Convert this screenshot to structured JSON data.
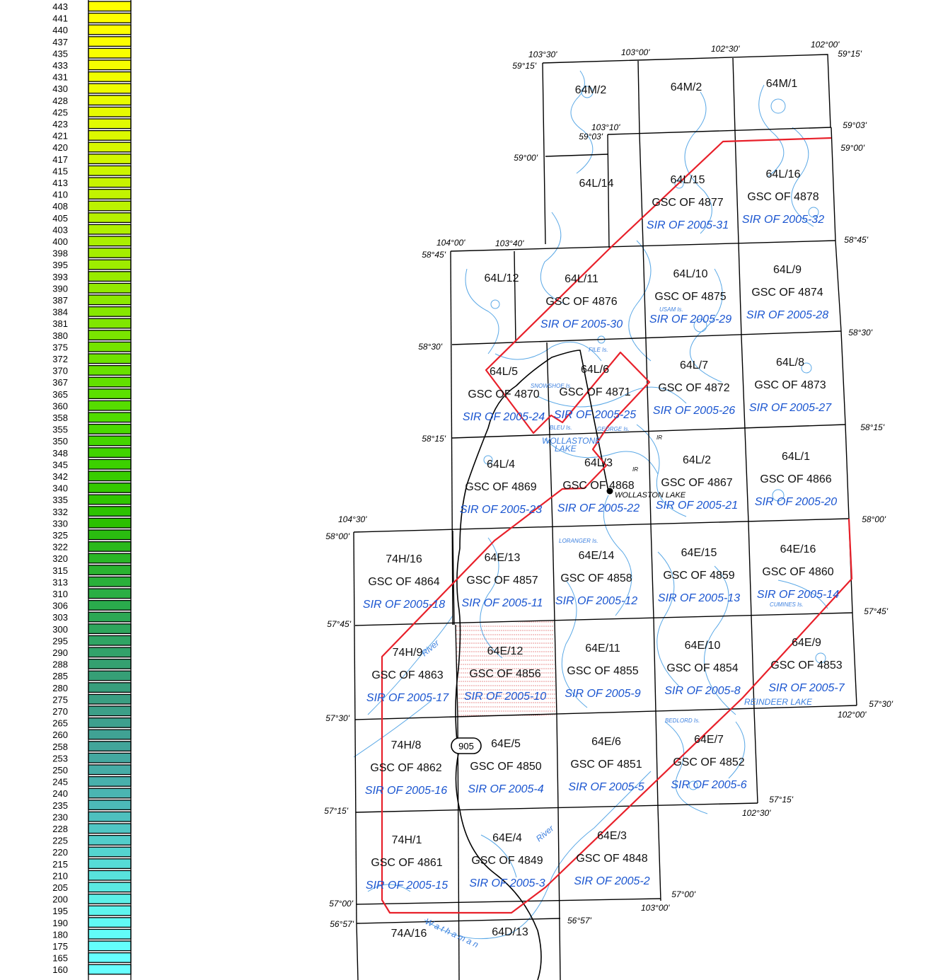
{
  "legend": {
    "values": [
      "443",
      "441",
      "440",
      "437",
      "435",
      "433",
      "431",
      "430",
      "428",
      "425",
      "423",
      "421",
      "420",
      "417",
      "415",
      "413",
      "410",
      "408",
      "405",
      "403",
      "400",
      "398",
      "395",
      "393",
      "390",
      "387",
      "384",
      "381",
      "380",
      "375",
      "372",
      "370",
      "367",
      "365",
      "360",
      "358",
      "355",
      "350",
      "348",
      "345",
      "342",
      "340",
      "335",
      "332",
      "330",
      "325",
      "322",
      "320",
      "315",
      "313",
      "310",
      "306",
      "303",
      "300",
      "295",
      "290",
      "288",
      "285",
      "280",
      "275",
      "270",
      "265",
      "260",
      "258",
      "253",
      "250",
      "245",
      "240",
      "235",
      "230",
      "228",
      "225",
      "220",
      "215",
      "210",
      "205",
      "200",
      "195",
      "190",
      "180",
      "175",
      "165",
      "160"
    ],
    "colors": [
      "#ffff00",
      "#ffff00",
      "#ffff00",
      "#fcfe00",
      "#f8fe00",
      "#f5fd00",
      "#f1fd00",
      "#eefc00",
      "#eafc00",
      "#e6fb00",
      "#e1fa00",
      "#dcf900",
      "#d7f800",
      "#d2f700",
      "#cdf500",
      "#c8f400",
      "#c2f300",
      "#bcf200",
      "#b6f100",
      "#b0f000",
      "#aaef00",
      "#a4ee00",
      "#9eec00",
      "#98eb00",
      "#92ea00",
      "#8ce900",
      "#86e800",
      "#80e600",
      "#7ae500",
      "#74e400",
      "#6ee300",
      "#68e100",
      "#62e000",
      "#5cdf00",
      "#56dd00",
      "#50dc00",
      "#4ad900",
      "#44d600",
      "#40d300",
      "#3cd000",
      "#38cd00",
      "#34c900",
      "#30c600",
      "#2dc300",
      "#2bc000",
      "#2abc10",
      "#2ab91c",
      "#2ab626",
      "#2ab330",
      "#2ab03a",
      "#2aae44",
      "#2aab4c",
      "#2ca854",
      "#2ea65c",
      "#30a464",
      "#32a26a",
      "#34a070",
      "#369f76",
      "#389e7c",
      "#3a9e82",
      "#3c9f88",
      "#3ea08e",
      "#40a294",
      "#42a59a",
      "#44a8a0",
      "#46aca6",
      "#48b0ac",
      "#4ab5b2",
      "#4cbab8",
      "#4ec0be",
      "#50c6c4",
      "#52cdca",
      "#54d4d0",
      "#56dbd6",
      "#58e2dc",
      "#5ae9e2",
      "#5cf0e8",
      "#5ef5ee",
      "#60f9f4",
      "#62fcf8",
      "#64fefc",
      "#66ffff",
      "#68ffff"
    ]
  },
  "graticule": {
    "lat": [
      "59°15'",
      "59°03'",
      "59°00'",
      "58°45'",
      "58°30'",
      "58°15'",
      "58°00'",
      "57°45'",
      "57°30'",
      "57°15'",
      "57°00'",
      "56°57'"
    ],
    "lon": [
      "104°30'",
      "104°00'",
      "103°40'",
      "103°30'",
      "103°10'",
      "103°00'",
      "102°30'",
      "102°00'"
    ]
  },
  "sheets": [
    {
      "id": "64M/2",
      "gsc": "",
      "sir": ""
    },
    {
      "id": "64M/2",
      "gsc": "",
      "sir": ""
    },
    {
      "id": "64M/1",
      "gsc": "",
      "sir": ""
    },
    {
      "id": "64L/14",
      "gsc": "",
      "sir": ""
    },
    {
      "id": "64L/15",
      "gsc": "GSC OF 4877",
      "sir": "SIR OF 2005-31"
    },
    {
      "id": "64L/16",
      "gsc": "GSC OF 4878",
      "sir": "SIR OF 2005-32"
    },
    {
      "id": "64L/12",
      "gsc": "",
      "sir": ""
    },
    {
      "id": "64L/11",
      "gsc": "GSC OF 4876",
      "sir": "SIR OF 2005-30"
    },
    {
      "id": "64L/10",
      "gsc": "GSC OF 4875",
      "sir": "SIR OF 2005-29"
    },
    {
      "id": "64L/9",
      "gsc": "GSC OF 4874",
      "sir": "SIR OF 2005-28"
    },
    {
      "id": "64L/5",
      "gsc": "GSC OF 4870",
      "sir": "SIR OF 2005-24"
    },
    {
      "id": "64L/6",
      "gsc": "GSC OF 4871",
      "sir": "SIR OF 2005-25"
    },
    {
      "id": "64L/7",
      "gsc": "GSC OF 4872",
      "sir": "SIR OF 2005-26"
    },
    {
      "id": "64L/8",
      "gsc": "GSC OF 4873",
      "sir": "SIR OF 2005-27"
    },
    {
      "id": "64L/4",
      "gsc": "GSC OF 4869",
      "sir": "SIR OF 2005-23"
    },
    {
      "id": "64L/3",
      "gsc": "GSC OF 4868",
      "sir": "SIR OF 2005-22"
    },
    {
      "id": "64L/2",
      "gsc": "GSC OF 4867",
      "sir": "SIR OF 2005-21"
    },
    {
      "id": "64L/1",
      "gsc": "GSC OF 4866",
      "sir": "SIR OF 2005-20"
    },
    {
      "id": "74H/16",
      "gsc": "GSC OF 4864",
      "sir": "SIR OF 2005-18"
    },
    {
      "id": "64E/13",
      "gsc": "GSC OF 4857",
      "sir": "SIR OF 2005-11"
    },
    {
      "id": "64E/14",
      "gsc": "GSC OF 4858",
      "sir": "SIR OF 2005-12"
    },
    {
      "id": "64E/15",
      "gsc": "GSC OF 4859",
      "sir": "SIR OF 2005-13"
    },
    {
      "id": "64E/16",
      "gsc": "GSC OF 4860",
      "sir": "SIR OF 2005-14"
    },
    {
      "id": "74H/9",
      "gsc": "GSC OF 4863",
      "sir": "SIR OF 2005-17"
    },
    {
      "id": "64E/12",
      "gsc": "GSC OF 4856",
      "sir": "SIR OF 2005-10"
    },
    {
      "id": "64E/11",
      "gsc": "GSC OF 4855",
      "sir": "SIR OF 2005-9"
    },
    {
      "id": "64E/10",
      "gsc": "GSC OF 4854",
      "sir": "SIR OF 2005-8"
    },
    {
      "id": "64E/9",
      "gsc": "GSC OF 4853",
      "sir": "SIR OF 2005-7"
    },
    {
      "id": "74H/8",
      "gsc": "GSC OF 4862",
      "sir": "SIR OF 2005-16"
    },
    {
      "id": "64E/5",
      "gsc": "GSC OF 4850",
      "sir": "SIR OF 2005-4"
    },
    {
      "id": "64E/6",
      "gsc": "GSC OF 4851",
      "sir": "SIR OF 2005-5"
    },
    {
      "id": "64E/7",
      "gsc": "GSC OF 4852",
      "sir": "SIR OF 2005-6"
    },
    {
      "id": "74H/1",
      "gsc": "GSC OF 4861",
      "sir": "SIR OF 2005-15"
    },
    {
      "id": "64E/4",
      "gsc": "GSC OF 4849",
      "sir": "SIR OF 2005-3"
    },
    {
      "id": "64E/3",
      "gsc": "GSC OF 4848",
      "sir": "SIR OF 2005-2"
    },
    {
      "id": "74A/16",
      "gsc": "",
      "sir": ""
    },
    {
      "id": "64D/13",
      "gsc": "",
      "sir": ""
    }
  ],
  "places": {
    "wollaston_lake_town": "WOLLASTON LAKE",
    "wollastone_lake": "WOLLASTONE",
    "lake": "LAKE",
    "reindeer_lake": "REINDEER LAKE",
    "highway": "905",
    "file_is": "FILE Is.",
    "snowshoe_is": "SNOWSHOE Is.",
    "bleu_is": "BLEU Is.",
    "george_is": "GEORGE Is.",
    "usam_is": "USAM Is.",
    "loranger_is": "LORANGER Is.",
    "cumines_is": "CUMINES Is.",
    "bedlord_is": "BEDLORD Is.",
    "ir": "IR",
    "geikie_river": "River",
    "river": "River",
    "wathaman": "W a t h a m a n"
  },
  "colors": {
    "boundary": "#e8202a",
    "sheet_text": "#111111",
    "sir_text": "#1a55d0",
    "water": "#5aa8e6",
    "grid": "#000000"
  }
}
